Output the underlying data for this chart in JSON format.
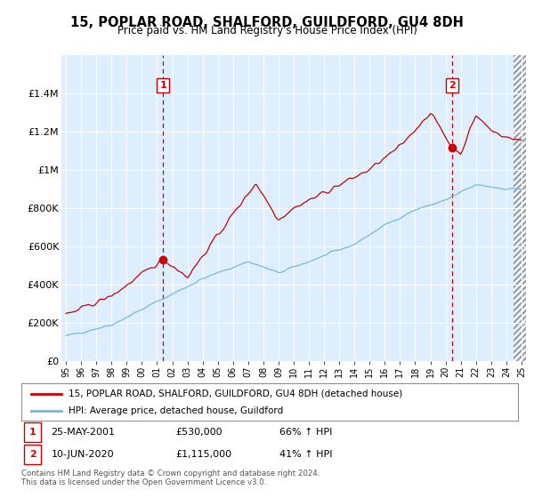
{
  "title": "15, POPLAR ROAD, SHALFORD, GUILDFORD, GU4 8DH",
  "subtitle": "Price paid vs. HM Land Registry's House Price Index (HPI)",
  "ylim": [
    0,
    1600000
  ],
  "yticks": [
    0,
    200000,
    400000,
    600000,
    800000,
    1000000,
    1200000,
    1400000
  ],
  "ytick_labels": [
    "£0",
    "£200K",
    "£400K",
    "£600K",
    "£800K",
    "£1M",
    "£1.2M",
    "£1.4M"
  ],
  "xlim_min": 1994.7,
  "xlim_max": 2025.3,
  "sale1": {
    "date_num": 2001.39,
    "price": 530000,
    "label": "1"
  },
  "sale2": {
    "date_num": 2020.44,
    "price": 1115000,
    "label": "2"
  },
  "legend_line1": "15, POPLAR ROAD, SHALFORD, GUILDFORD, GU4 8DH (detached house)",
  "legend_line2": "HPI: Average price, detached house, Guildford",
  "footer": "Contains HM Land Registry data © Crown copyright and database right 2024.\nThis data is licensed under the Open Government Licence v3.0.",
  "line_color_red": "#cc0000",
  "line_color_blue": "#7ab8d9",
  "dashed_color": "#cc0000",
  "bg_color": "#ddeeff",
  "grid_color": "#ffffff",
  "hatch_color": "#cccccc"
}
